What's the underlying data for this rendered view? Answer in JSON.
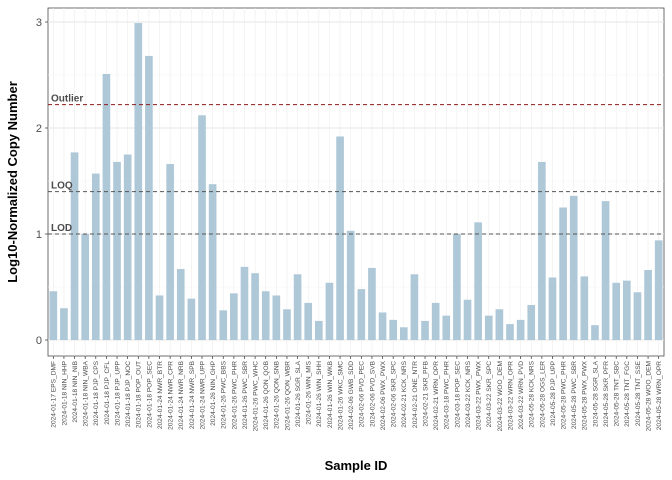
{
  "chart_data": {
    "type": "bar",
    "title": "",
    "xlabel": "Sample ID",
    "ylabel": "Log10-Normalized Copy Number",
    "ylim": [
      -0.1,
      3.08
    ],
    "yticks": [
      0,
      1,
      2,
      3
    ],
    "grid": true,
    "bar_color": "#aec8d8",
    "reference_lines": [
      {
        "label": "Outlier",
        "value": 2.22,
        "color": "#8b1a1a"
      },
      {
        "label": "LOQ",
        "value": 1.4,
        "color": "#555555"
      },
      {
        "label": "LOD",
        "value": 1.0,
        "color": "#555555"
      }
    ],
    "categories": [
      "2024-01-17 EPS_DMF",
      "2024-01-18 NIN_HHP",
      "2024-01-18 NIN_NIB",
      "2024-01-18 NIN_WBA",
      "2024-01-18 PJP_CPS",
      "2024-01-18 PJP_CFL",
      "2024-01-18 PJP_UPP",
      "2024-01-18 PJP_NOC",
      "2024-01-18 POP_OUT",
      "2024-01-18 POP_SEC",
      "2024-01-24 NWR_BTR",
      "2024-01-24 NWR_CPR",
      "2024-01-24 NWR_NRB",
      "2024-01-24 NWR_SPB",
      "2024-01-24 NWR_UPP",
      "2024-01-26 NIN_GHP",
      "2024-01-26 PWC_BBS",
      "2024-01-26 PWC_PHR",
      "2024-01-26 PWC_SBR",
      "2024-01-26 PWC_WHC",
      "2024-01-26 QON_QOB",
      "2024-01-26 QON_SNB",
      "2024-01-26 QON_WBR",
      "2024-01-26 SGR_SLA",
      "2024-01-26 WIN_MIS",
      "2024-01-26 WIN_SHH",
      "2024-01-26 WIN_WKB",
      "2024-01-26 WKC_SMC",
      "2024-02-06 GWB_SDD",
      "2024-02-06 PVD_PEC",
      "2024-02-06 PVD_SVB",
      "2024-02-06 PWX_PWX",
      "2024-02-06 SKR_SPC",
      "2024-02-21 KCK_NRS",
      "2024-02-21 ONE_NTR",
      "2024-02-21 SKR_PFB",
      "2024-02-21 WRN_OPR",
      "2024-03-18 PWC_PHR",
      "2024-03-18 POP_SEC",
      "2024-03-22 KCK_NRS",
      "2024-03-22 PWX_PWX",
      "2024-03-22 SKR_SPC",
      "2024-03-22 WOO_DEM",
      "2024-03-22 WRN_OPR",
      "2024-03-22 WRN_PVD",
      "2024-05-28 KCK_NRS",
      "2024-05-28 OGS_LER",
      "2024-05-28 PJP_UPP",
      "2024-05-28 PWC_PHR",
      "2024-05-28 PWC_SBR",
      "2024-05-28 PWX_PWX",
      "2024-05-28 SGR_SLA",
      "2024-05-28 SKR_PFR",
      "2024-05-28 TNT_SBC",
      "2024-05-28 TNT_FGC",
      "2024-05-28 TNT_SSE",
      "2024-05-28 WOO_DEM",
      "2024-05-28 WRN_OPR"
    ],
    "values": [
      0.46,
      0.3,
      1.77,
      1.0,
      1.57,
      2.51,
      1.68,
      1.75,
      2.99,
      2.68,
      0.42,
      1.66,
      0.67,
      0.39,
      2.12,
      1.47,
      0.28,
      0.44,
      0.69,
      0.63,
      0.46,
      0.42,
      0.29,
      0.62,
      0.35,
      0.18,
      0.54,
      1.92,
      1.03,
      0.48,
      0.68,
      0.26,
      0.19,
      0.12,
      0.62,
      0.18,
      0.35,
      0.23,
      1.0,
      0.38,
      1.11,
      0.23,
      0.29,
      0.15,
      0.19,
      0.33,
      1.68,
      0.59,
      1.25,
      1.36,
      0.6,
      0.14,
      1.31,
      0.54,
      0.56,
      0.45,
      0.66,
      0.94
    ]
  }
}
